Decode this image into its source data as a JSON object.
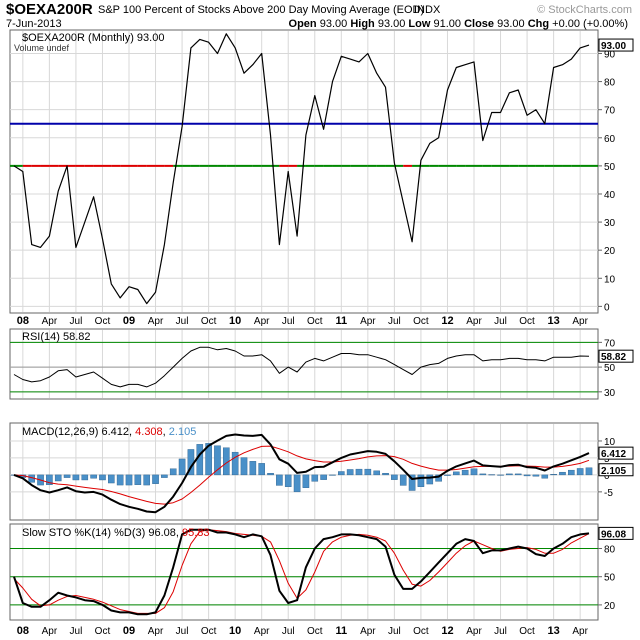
{
  "header": {
    "symbol": "$OEXA200R",
    "description": "S&P 100 Percent of Stocks Above 200 Day Moving Average (EOD)",
    "exchange": "INDX",
    "date": "7-Jun-2013",
    "brand": "© StockCharts.com",
    "open_label": "Open",
    "open": "93.00",
    "high_label": "High",
    "high": "93.00",
    "low_label": "Low",
    "low": "91.00",
    "close_label": "Close",
    "close": "93.00",
    "chg_label": "Chg",
    "chg": "+0.00 (+0.00%)"
  },
  "colors": {
    "price_line": "#000000",
    "line_65": "#0000aa",
    "line_50_above": "#008800",
    "line_50_below": "#dd0000",
    "signal": "#dd0000",
    "histogram": "#4a90c8",
    "ref_green": "#008800",
    "grid": "#d8d8d8"
  },
  "chart_data": [
    {
      "type": "line",
      "panel": "price",
      "legend": "$OEXA200R (Monthly) 93.00",
      "volume_note": "Volume undef",
      "last_value_label": "93.00",
      "x_ticks": [
        "08",
        "Apr",
        "Jul",
        "Oct",
        "09",
        "Apr",
        "Jul",
        "Oct",
        "10",
        "Apr",
        "Jul",
        "Oct",
        "11",
        "Apr",
        "Jul",
        "Oct",
        "12",
        "Apr",
        "Jul",
        "Oct",
        "13",
        "Apr"
      ],
      "y_ticks": [
        0,
        10,
        20,
        30,
        40,
        50,
        60,
        70,
        80,
        90
      ],
      "ylim": [
        -2,
        98
      ],
      "hlines": [
        65,
        50
      ],
      "values": [
        50,
        48,
        22,
        21,
        25,
        41,
        50,
        21,
        30,
        39,
        24,
        8,
        3,
        7,
        6,
        1,
        5,
        22,
        44,
        64,
        92,
        95,
        94,
        90,
        97,
        92,
        83,
        86,
        90,
        61,
        22,
        48,
        25,
        61,
        75,
        63,
        80,
        89,
        88,
        87,
        90,
        83,
        78,
        51,
        37,
        23,
        52,
        58,
        60,
        77,
        85,
        86,
        87,
        59,
        69,
        69,
        76,
        77,
        68,
        70,
        65,
        85,
        86,
        88,
        92,
        93
      ]
    },
    {
      "type": "line",
      "panel": "rsi",
      "legend_name": "RSI(14)",
      "legend_value": "58.82",
      "last_value_label": "58.82",
      "y_ticks": [
        30,
        50,
        70
      ],
      "ylim": [
        25,
        80
      ],
      "hlines": [
        70,
        30
      ],
      "values": [
        44,
        40,
        38,
        39,
        42,
        47,
        48,
        42,
        44,
        46,
        41,
        36,
        34,
        36,
        36,
        34,
        37,
        43,
        50,
        57,
        63,
        66,
        66,
        64,
        65,
        63,
        59,
        59,
        60,
        55,
        45,
        50,
        46,
        54,
        57,
        55,
        58,
        61,
        61,
        60,
        60,
        58,
        56,
        52,
        48,
        44,
        50,
        52,
        53,
        57,
        59,
        60,
        60,
        55,
        56,
        56,
        57,
        57,
        56,
        56,
        55,
        58,
        58,
        58,
        59,
        58.82
      ]
    },
    {
      "type": "line",
      "panel": "macd",
      "legend_name": "MACD(12,26,9)",
      "legend_macd": "6.412",
      "legend_signal": "4.308",
      "legend_hist": "2.105",
      "last_value_label": "6.412",
      "last_value_label_2": "2.105",
      "y_ticks": [
        -5,
        0,
        5,
        10
      ],
      "ylim": [
        -13,
        15
      ],
      "hline": 0,
      "macd": [
        0,
        -1,
        -3,
        -4.5,
        -5.2,
        -4.5,
        -3.7,
        -4.8,
        -5.2,
        -5.0,
        -5.8,
        -7.3,
        -8.6,
        -9.4,
        -10,
        -10.8,
        -11,
        -9.4,
        -6.4,
        -2.4,
        2.3,
        6,
        8.6,
        10.1,
        11.5,
        11.9,
        11.6,
        11.5,
        11.8,
        9,
        4.6,
        3.3,
        0.6,
        0.9,
        2.3,
        2.4,
        3.7,
        5,
        6,
        6.5,
        7,
        6.8,
        6.2,
        4,
        1.5,
        -1.2,
        -0.9,
        -0.8,
        -0.5,
        1.2,
        2.5,
        3.4,
        4.2,
        2.8,
        2.6,
        2.4,
        2.9,
        3,
        2.3,
        2.1,
        1.3,
        2.5,
        3.3,
        4.3,
        5.3,
        6.412
      ],
      "signal": [
        0,
        -0.2,
        -0.8,
        -1.5,
        -2.3,
        -2.7,
        -2.9,
        -3.3,
        -3.7,
        -4.0,
        -4.3,
        -4.9,
        -5.6,
        -6.4,
        -7.1,
        -7.8,
        -8.4,
        -8.6,
        -8.2,
        -7.1,
        -5.2,
        -3.0,
        -0.7,
        1.5,
        3.5,
        5.2,
        6.5,
        7.5,
        8.4,
        8.5,
        7.7,
        6.8,
        5.6,
        4.7,
        4.2,
        3.8,
        3.8,
        4,
        4.4,
        4.8,
        5.3,
        5.6,
        5.7,
        5.4,
        4.6,
        3.4,
        2.6,
        1.9,
        1.4,
        1.4,
        1.6,
        2,
        2.4,
        2.5,
        2.5,
        2.5,
        2.6,
        2.7,
        2.6,
        2.5,
        2.3,
        2.3,
        2.5,
        2.9,
        3.4,
        4.308
      ],
      "hist": [
        0,
        -0.8,
        -2.2,
        -3,
        -2.9,
        -1.8,
        -0.8,
        -1.5,
        -1.5,
        -1,
        -1.5,
        -2.4,
        -3,
        -3,
        -2.9,
        -3,
        -2.6,
        -0.8,
        1.8,
        4.7,
        7.5,
        9,
        9.3,
        8.6,
        8,
        6.7,
        5.1,
        4,
        3.4,
        0.5,
        -3.1,
        -3.5,
        -5,
        -3.8,
        -1.9,
        -1.4,
        -0.1,
        1,
        1.6,
        1.7,
        1.7,
        1.2,
        0.5,
        -1.4,
        -3.1,
        -4.6,
        -3.5,
        -2.7,
        -1.9,
        -0.2,
        0.9,
        1.4,
        1.8,
        0.3,
        0.1,
        -0.1,
        0.3,
        0.3,
        -0.3,
        -0.4,
        -1,
        0.2,
        0.8,
        1.4,
        1.9,
        2.105
      ]
    },
    {
      "type": "line",
      "panel": "stochastic",
      "legend_name": "Slow STO %K(14) %D(3)",
      "legend_k": "96.08",
      "legend_d": "95.83",
      "last_value_label": "96.08",
      "y_ticks": [
        20,
        50,
        80
      ],
      "ylim": [
        5,
        105
      ],
      "hlines": [
        80,
        50,
        20
      ],
      "k": [
        50,
        22,
        18,
        18,
        25,
        33,
        30,
        28,
        25,
        24,
        20,
        14,
        12,
        12,
        10,
        10,
        12,
        30,
        60,
        95,
        100,
        100,
        100,
        97,
        97,
        95,
        92,
        95,
        93,
        73,
        35,
        22,
        25,
        60,
        80,
        90,
        92,
        95,
        95,
        94,
        92,
        90,
        82,
        52,
        37,
        37,
        45,
        55,
        65,
        75,
        85,
        90,
        88,
        75,
        78,
        78,
        80,
        82,
        80,
        74,
        72,
        80,
        85,
        92,
        95,
        96.08
      ],
      "d": [
        48,
        38,
        26,
        19,
        20,
        25,
        29,
        30,
        28,
        26,
        23,
        19,
        15,
        13,
        11,
        11,
        11,
        17,
        34,
        62,
        85,
        98,
        100,
        99,
        98,
        96,
        95,
        94,
        93,
        87,
        67,
        43,
        27,
        36,
        55,
        77,
        87,
        92,
        94,
        95,
        94,
        92,
        88,
        75,
        57,
        42,
        40,
        46,
        55,
        65,
        75,
        83,
        88,
        84,
        80,
        77,
        79,
        80,
        81,
        79,
        75,
        75,
        79,
        86,
        91,
        95.83
      ]
    }
  ]
}
